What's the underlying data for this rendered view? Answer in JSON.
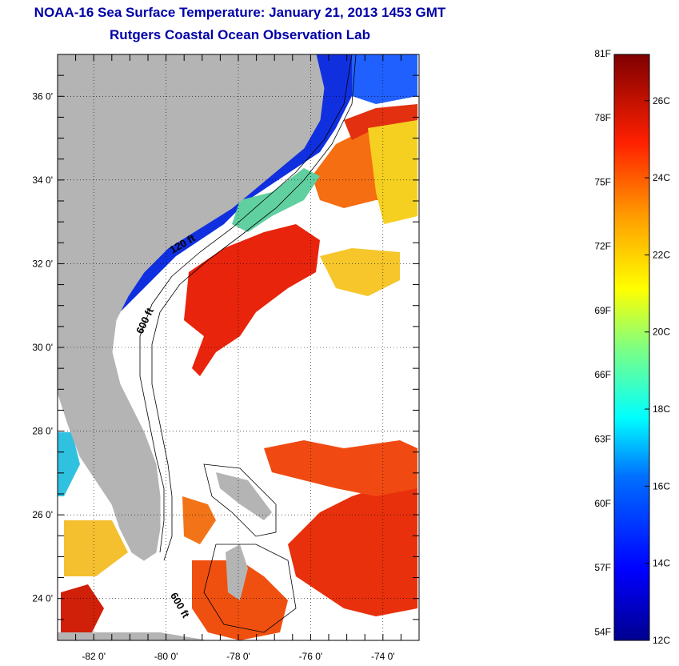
{
  "header": {
    "title": "NOAA-16 Sea Surface Temperature:  January 21, 2013 1453 GMT",
    "subtitle": "Rutgers Coastal Ocean Observation Lab"
  },
  "map": {
    "lon_range": [
      -83,
      -73
    ],
    "lat_range": [
      23,
      37
    ],
    "x_ticks": [
      {
        "value": -82,
        "label": "-82 0'"
      },
      {
        "value": -80,
        "label": "-80 0'"
      },
      {
        "value": -78,
        "label": "-78 0'"
      },
      {
        "value": -76,
        "label": "-76 0'"
      },
      {
        "value": -74,
        "label": "-74 0'"
      }
    ],
    "y_ticks": [
      {
        "value": 36,
        "label": "36 0'"
      },
      {
        "value": 34,
        "label": "34 0'"
      },
      {
        "value": 32,
        "label": "32 0'"
      },
      {
        "value": 30,
        "label": "30 0'"
      },
      {
        "value": 28,
        "label": "28 0'"
      },
      {
        "value": 26,
        "label": "26 0'"
      },
      {
        "value": 24,
        "label": "24 0'"
      }
    ],
    "contour_labels": [
      {
        "text": "120 ft",
        "lon": -79.5,
        "lat": 32.4
      },
      {
        "text": "600 ft",
        "lon": -80.5,
        "lat": 30.6
      },
      {
        "text": "600 ft",
        "lon": -79.7,
        "lat": 23.8
      }
    ],
    "colors": {
      "land": "#b4b4b4",
      "no_data": "#ffffff"
    }
  },
  "colorbar": {
    "min_c": 12,
    "max_c": 27.2,
    "fahrenheit_labels": [
      "81F",
      "78F",
      "75F",
      "72F",
      "69F",
      "66F",
      "63F",
      "60F",
      "57F",
      "54F"
    ],
    "celsius_labels": [
      "26C",
      "24C",
      "22C",
      "20C",
      "18C",
      "16C",
      "14C",
      "12C"
    ]
  }
}
